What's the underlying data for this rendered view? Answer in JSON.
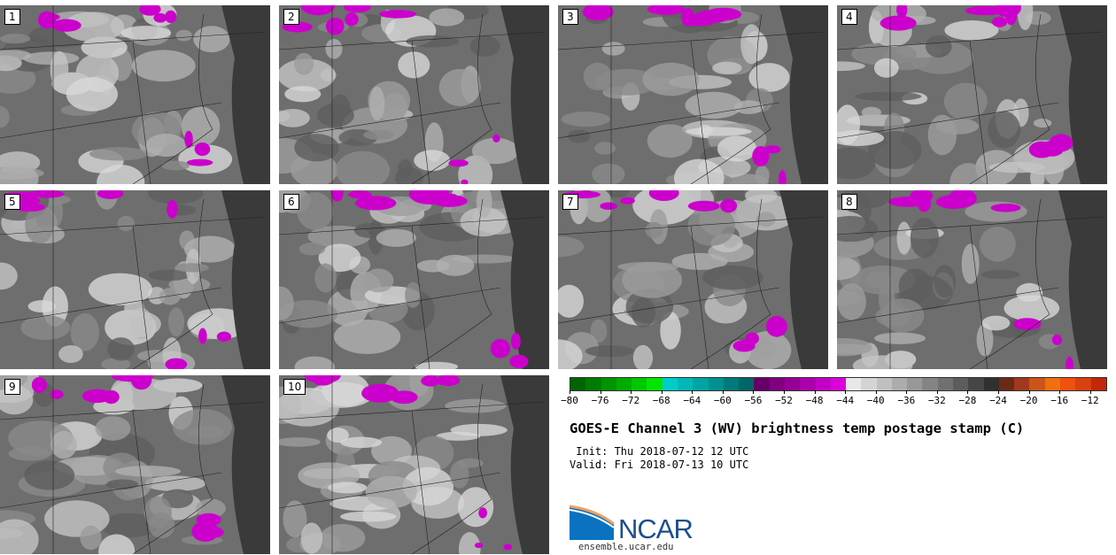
{
  "panels": [
    "1",
    "2",
    "3",
    "4",
    "5",
    "6",
    "7",
    "8",
    "9",
    "10"
  ],
  "colorbar": {
    "min": -80,
    "max": -10,
    "step": 2,
    "tick_labels": [
      "−80",
      "−76",
      "−72",
      "−68",
      "−64",
      "−60",
      "−56",
      "−52",
      "−48",
      "−44",
      "−40",
      "−36",
      "−32",
      "−28",
      "−24",
      "−20",
      "−16",
      "−12"
    ],
    "tick_values": [
      -80,
      -76,
      -72,
      -68,
      -64,
      -60,
      -56,
      -52,
      -48,
      -44,
      -40,
      -36,
      -32,
      -28,
      -24,
      -20,
      -16,
      -12
    ],
    "colors": [
      "#006400",
      "#007c00",
      "#009400",
      "#00ac00",
      "#00c800",
      "#00e600",
      "#00cccc",
      "#00b8b8",
      "#00a4a4",
      "#009090",
      "#007a7a",
      "#006666",
      "#660066",
      "#800080",
      "#960096",
      "#ac00ac",
      "#c400c4",
      "#dc00dc",
      "#e8e8e8",
      "#d4d4d4",
      "#c0c0c0",
      "#acacac",
      "#989898",
      "#848484",
      "#707070",
      "#5c5c5c",
      "#464646",
      "#303030",
      "#6a2a18",
      "#a03a1c",
      "#cc5418",
      "#ee7010",
      "#f05010",
      "#d84010",
      "#c02808"
    ]
  },
  "title": "GOES-E Channel 3 (WV) brightness temp postage stamp (C)",
  "init": " Init: Thu 2018-07-12 12 UTC",
  "valid": "Valid: Fri 2018-07-13 10 UTC",
  "logo_text": "NCAR",
  "site": "ensemble.ucar.edu"
}
